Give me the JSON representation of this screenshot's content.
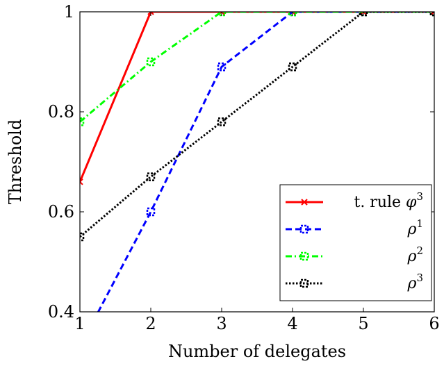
{
  "chart_data": {
    "type": "line",
    "xlabel": "Number of delegates",
    "ylabel": "Threshold",
    "xlim": [
      1,
      6
    ],
    "ylim": [
      0.4,
      1.0
    ],
    "x_ticks": [
      "1",
      "2",
      "3",
      "4",
      "5",
      "6"
    ],
    "y_ticks": [
      "0.4",
      "0.6",
      "0.8",
      "1"
    ],
    "grid": false,
    "legend_placement": "bottom-right",
    "series": [
      {
        "key": "trule",
        "name": "t. rule",
        "name_symbol": "φ",
        "name_sup": "3",
        "color": "#ff0000",
        "dash": "solid",
        "marker": "x",
        "x": [
          1,
          2,
          3,
          4,
          5,
          6
        ],
        "y": [
          0.66,
          1.0,
          1.0,
          1.0,
          1.0,
          1.0
        ]
      },
      {
        "key": "rho1",
        "name": "",
        "name_symbol": "ρ",
        "name_sup": "1",
        "color": "#0000ff",
        "dash": "dashed",
        "marker": "square",
        "x": [
          1,
          2,
          3,
          4,
          5,
          6
        ],
        "y": [
          0.33,
          0.6,
          0.89,
          1.0,
          1.0,
          1.0
        ]
      },
      {
        "key": "rho2",
        "name": "",
        "name_symbol": "ρ",
        "name_sup": "2",
        "color": "#00ff00",
        "dash": "dashdot",
        "marker": "square",
        "x": [
          1,
          2,
          3,
          4,
          5,
          6
        ],
        "y": [
          0.78,
          0.9,
          1.0,
          1.0,
          1.0,
          1.0
        ]
      },
      {
        "key": "rho3",
        "name": "",
        "name_symbol": "ρ",
        "name_sup": "3",
        "color": "#000000",
        "dash": "dotted",
        "marker": "square",
        "x": [
          1,
          2,
          3,
          4,
          5,
          6
        ],
        "y": [
          0.55,
          0.67,
          0.78,
          0.89,
          1.0,
          1.0
        ]
      }
    ]
  }
}
